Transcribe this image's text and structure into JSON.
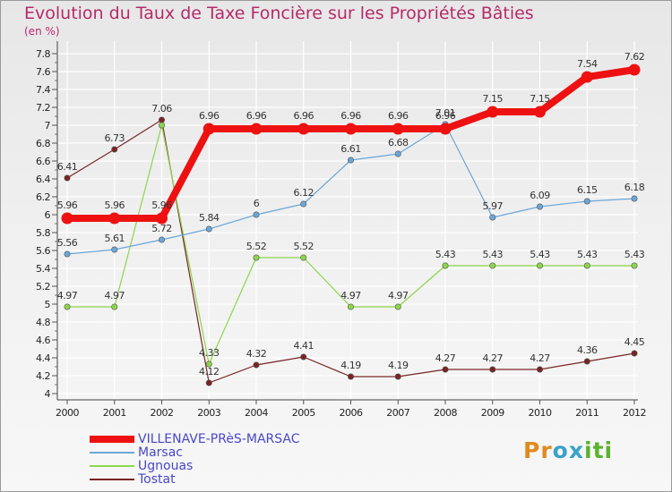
{
  "header": {
    "title": "Evolution du Taux de Taxe Foncière sur les Propriétés Bâties",
    "units": "(en %)"
  },
  "logo": {
    "text": "Proxiti",
    "letter_colors": [
      "#e08a1e",
      "#e08a1e",
      "#3aa3c8",
      "#3aa3c8",
      "#5cb22e",
      "#5cb22e",
      "#5cb22e"
    ]
  },
  "chart_data": {
    "type": "line",
    "title": "Evolution du Taux de Taxe Foncière sur les Propriétés Bâties",
    "ylabel": "(en %)",
    "xlabel": "",
    "x": [
      "2000",
      "2001",
      "2002",
      "2003",
      "2004",
      "2005",
      "2006",
      "2007",
      "2008",
      "2009",
      "2010",
      "2011",
      "2012"
    ],
    "ylim": [
      4,
      7.8
    ],
    "yticks": [
      "4",
      "4.2",
      "4.4",
      "4.6",
      "4.8",
      "5",
      "5.2",
      "5.4",
      "5.6",
      "5.8",
      "6",
      "6.2",
      "6.4",
      "6.6",
      "6.8",
      "7",
      "7.2",
      "7.4",
      "7.6",
      "7.8"
    ],
    "grid": true,
    "legend_position": "bottom-left",
    "series": [
      {
        "name": "VILLENAVE-PRèS-MARSAC",
        "color": "#ee1111",
        "values": [
          5.96,
          5.96,
          5.96,
          6.96,
          6.96,
          6.96,
          6.96,
          6.96,
          6.96,
          7.15,
          7.15,
          7.54,
          7.62
        ],
        "labels": [
          "5.96",
          "5.96",
          "5.96",
          "6.96",
          "6.96",
          "6.96",
          "6.96",
          "6.96",
          "6.96",
          "7.15",
          "7.15",
          "7.54",
          "7.62"
        ]
      },
      {
        "name": "Marsac",
        "color": "#6ba6d8",
        "values": [
          5.56,
          5.61,
          5.72,
          5.84,
          6,
          6.12,
          6.61,
          6.68,
          7.01,
          5.97,
          6.09,
          6.15,
          6.18
        ],
        "labels": [
          "5.56",
          "5.61",
          "5.72",
          "5.84",
          "6",
          "6.12",
          "6.61",
          "6.68",
          "7.01",
          "5.97",
          "6.09",
          "6.15",
          "6.18"
        ]
      },
      {
        "name": "Ugnouas",
        "color": "#8cd64a",
        "values": [
          4.97,
          4.97,
          7,
          4.33,
          5.52,
          5.52,
          4.97,
          4.97,
          5.43,
          5.43,
          5.43,
          5.43,
          5.43
        ],
        "labels": [
          "4.97",
          "4.97",
          "",
          "4.33",
          "5.52",
          "5.52",
          "4.97",
          "4.97",
          "5.43",
          "5.43",
          "5.43",
          "5.43",
          "5.43"
        ]
      },
      {
        "name": "Tostat",
        "color": "#7a2424",
        "values": [
          6.41,
          6.73,
          7.06,
          4.12,
          4.32,
          4.41,
          4.19,
          4.19,
          4.27,
          4.27,
          4.27,
          4.36,
          4.45
        ],
        "labels": [
          "6.41",
          "6.73",
          "7.06",
          "4.12",
          "4.32",
          "4.41",
          "4.19",
          "4.19",
          "4.27",
          "4.27",
          "4.27",
          "4.36",
          "4.45"
        ]
      }
    ]
  }
}
